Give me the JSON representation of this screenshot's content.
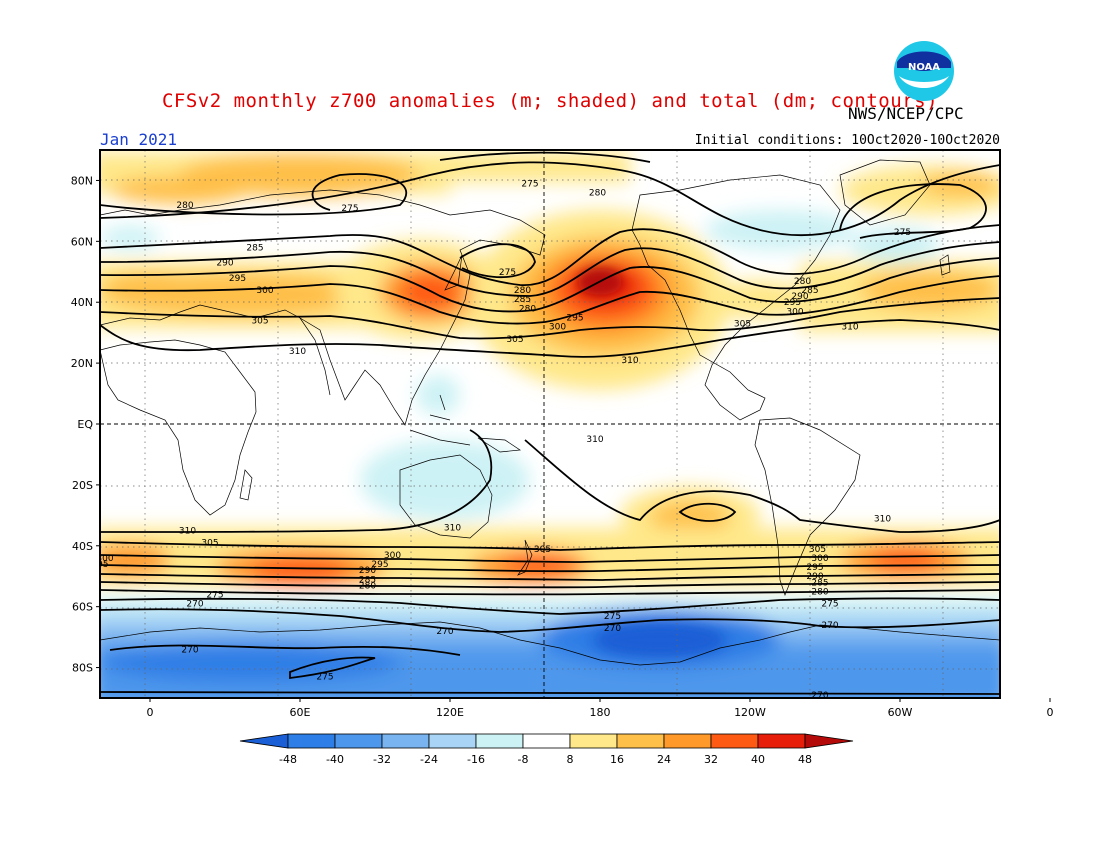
{
  "title": "CFSv2 monthly z700 anomalies (m; shaded) and total (dm; contours)",
  "agency": "NWS/NCEP/CPC",
  "logo_text": "NOAA",
  "period": "Jan 2021",
  "initial_conditions": "Initial conditions: 10Oct2020-10Oct2020",
  "map": {
    "lat_ticks": [
      "80N",
      "60N",
      "40N",
      "20N",
      "EQ",
      "20S",
      "40S",
      "60S",
      "80S"
    ],
    "lon_ticks": [
      "0",
      "60E",
      "120E",
      "180",
      "120W",
      "60W",
      "0"
    ]
  },
  "colorbar": {
    "levels": [
      "-48",
      "-40",
      "-32",
      "-24",
      "-16",
      "-8",
      "8",
      "16",
      "24",
      "32",
      "40",
      "48"
    ],
    "colors": [
      "#1a5fd6",
      "#2d7ee6",
      "#4d97ec",
      "#79b3f0",
      "#a9d4f5",
      "#cdf2f5",
      "#ffffff",
      "#ffe88a",
      "#ffc04a",
      "#ff9a2a",
      "#ff5a14",
      "#e61e0a",
      "#b40a0a"
    ]
  },
  "contour_labels": [
    {
      "text": "275",
      "lon": 152,
      "lat": 79
    },
    {
      "text": "280",
      "lon": 179,
      "lat": 76
    },
    {
      "text": "275",
      "lon": 80,
      "lat": 71
    },
    {
      "text": "280",
      "lon": 14,
      "lat": 72
    },
    {
      "text": "275",
      "lon": 301,
      "lat": 63
    },
    {
      "text": "285",
      "lon": 42,
      "lat": 58
    },
    {
      "text": "290",
      "lon": 30,
      "lat": 53
    },
    {
      "text": "295",
      "lon": 35,
      "lat": 48
    },
    {
      "text": "300",
      "lon": 46,
      "lat": 44
    },
    {
      "text": "305",
      "lon": 44,
      "lat": 34
    },
    {
      "text": "310",
      "lon": 59,
      "lat": 24
    },
    {
      "text": "275",
      "lon": 143,
      "lat": 50
    },
    {
      "text": "280",
      "lon": 149,
      "lat": 44
    },
    {
      "text": "285",
      "lon": 149,
      "lat": 41
    },
    {
      "text": "280",
      "lon": 151,
      "lat": 38
    },
    {
      "text": "295",
      "lon": 170,
      "lat": 35
    },
    {
      "text": "300",
      "lon": 163,
      "lat": 32
    },
    {
      "text": "305",
      "lon": 146,
      "lat": 28
    },
    {
      "text": "310",
      "lon": 192,
      "lat": 21
    },
    {
      "text": "280",
      "lon": 261,
      "lat": 47
    },
    {
      "text": "285",
      "lon": 264,
      "lat": 44
    },
    {
      "text": "290",
      "lon": 260,
      "lat": 42
    },
    {
      "text": "295",
      "lon": 257,
      "lat": 40
    },
    {
      "text": "300",
      "lon": 258,
      "lat": 37
    },
    {
      "text": "305",
      "lon": 237,
      "lat": 33
    },
    {
      "text": "310",
      "lon": 280,
      "lat": 32
    },
    {
      "text": "310",
      "lon": 178,
      "lat": -5
    },
    {
      "text": "310",
      "lon": 121,
      "lat": -34
    },
    {
      "text": "310",
      "lon": 15,
      "lat": -35
    },
    {
      "text": "310",
      "lon": 293,
      "lat": -31
    },
    {
      "text": "305",
      "lon": 24,
      "lat": -39
    },
    {
      "text": "300",
      "lon": -18,
      "lat": -44
    },
    {
      "text": "295",
      "lon": -20,
      "lat": -46
    },
    {
      "text": "300",
      "lon": 97,
      "lat": -43
    },
    {
      "text": "295",
      "lon": 92,
      "lat": -46
    },
    {
      "text": "290",
      "lon": 87,
      "lat": -48
    },
    {
      "text": "285",
      "lon": 87,
      "lat": -51
    },
    {
      "text": "280",
      "lon": 87,
      "lat": -53
    },
    {
      "text": "275",
      "lon": 26,
      "lat": -56
    },
    {
      "text": "270",
      "lon": 18,
      "lat": -59
    },
    {
      "text": "305",
      "lon": 157,
      "lat": -41
    },
    {
      "text": "275",
      "lon": 185,
      "lat": -63
    },
    {
      "text": "270",
      "lon": 185,
      "lat": -67
    },
    {
      "text": "270",
      "lon": 118,
      "lat": -68
    },
    {
      "text": "270",
      "lon": 16,
      "lat": -74
    },
    {
      "text": "275",
      "lon": 70,
      "lat": -83
    },
    {
      "text": "305",
      "lon": 267,
      "lat": -41
    },
    {
      "text": "300",
      "lon": 268,
      "lat": -44
    },
    {
      "text": "295",
      "lon": 266,
      "lat": -47
    },
    {
      "text": "290",
      "lon": 266,
      "lat": -50
    },
    {
      "text": "285",
      "lon": 268,
      "lat": -52
    },
    {
      "text": "280",
      "lon": 268,
      "lat": -55
    },
    {
      "text": "275",
      "lon": 272,
      "lat": -59
    },
    {
      "text": "270",
      "lon": 272,
      "lat": -66
    },
    {
      "text": "270",
      "lon": 268,
      "lat": -89
    }
  ]
}
